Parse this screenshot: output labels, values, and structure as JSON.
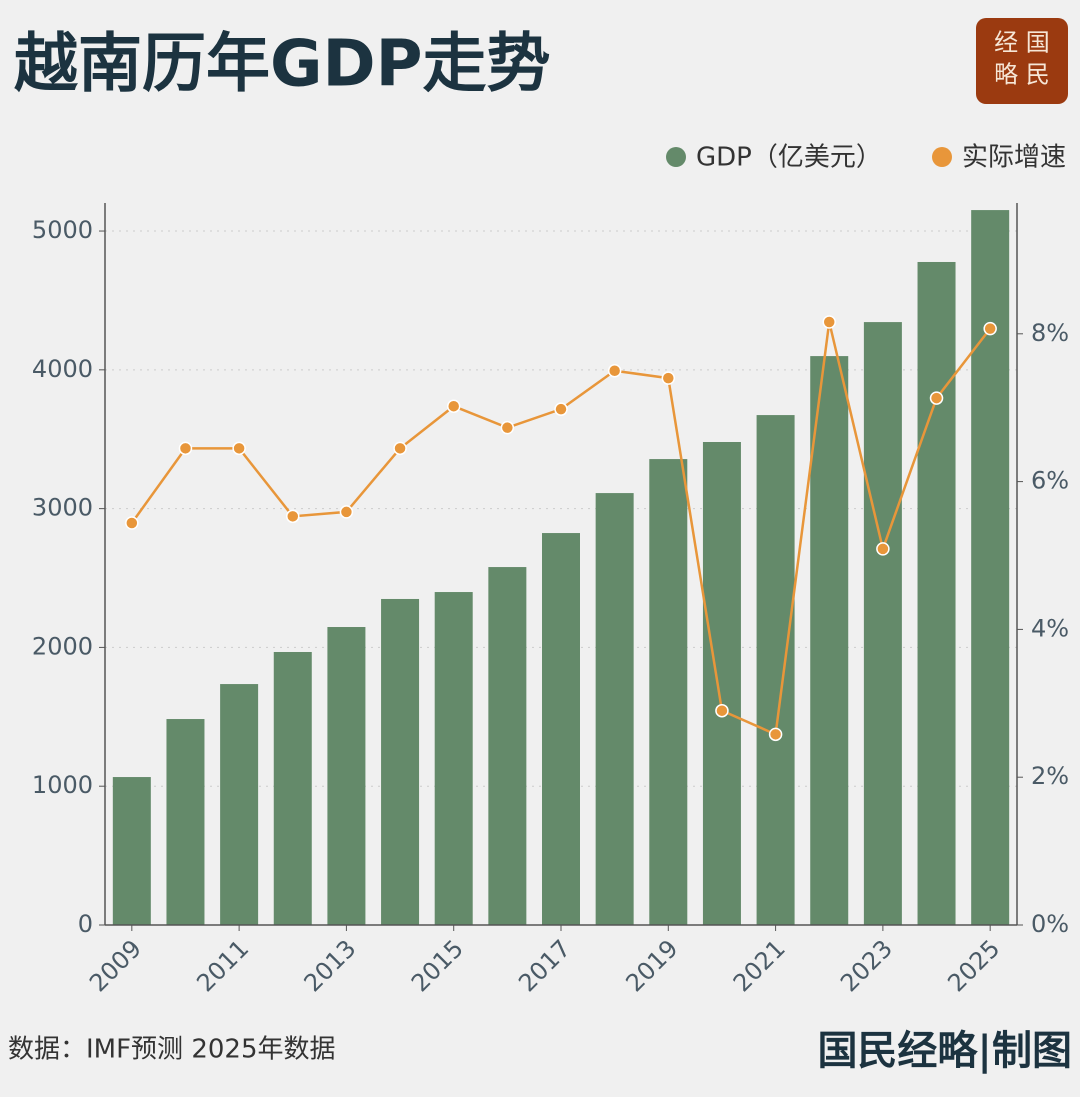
{
  "logo": {
    "lines": [
      "经 国",
      "略 民"
    ]
  },
  "chart_data": {
    "type": "bar-line",
    "title": "越南历年GDP走势",
    "source": "数据：IMF预测  2025年数据",
    "credit": "国民经略|制图",
    "x": [
      2009,
      2010,
      2011,
      2012,
      2013,
      2014,
      2015,
      2016,
      2017,
      2018,
      2019,
      2020,
      2021,
      2022,
      2023,
      2024,
      2025
    ],
    "xlim": [
      2008.5,
      2025.5
    ],
    "xticks": [
      2009,
      2011,
      2013,
      2015,
      2017,
      2019,
      2021,
      2023,
      2025
    ],
    "ylim": [
      0,
      5202
    ],
    "yticks": [
      0,
      1000,
      2000,
      3000,
      4000,
      5000
    ],
    "y2lim": [
      0,
      9.77
    ],
    "y2ticks": [
      {
        "value": 0,
        "label": "0%"
      },
      {
        "value": 2,
        "label": "2%"
      },
      {
        "value": 4,
        "label": "4%"
      },
      {
        "value": 6,
        "label": "6%"
      },
      {
        "value": 8,
        "label": "8%"
      }
    ],
    "grid": true,
    "series": [
      {
        "name": "GDP（亿美元）",
        "type": "bar",
        "color": "#648a6a",
        "values": [
          1066,
          1484,
          1736,
          1967,
          2147,
          2349,
          2399,
          2579,
          2824,
          3112,
          3357,
          3480,
          3674,
          4099,
          4344,
          4777,
          5151
        ]
      },
      {
        "name": "实际增速",
        "type": "line",
        "axis": "y2",
        "color": "#e8963a",
        "values": [
          5.44,
          6.45,
          6.45,
          5.53,
          5.59,
          6.45,
          7.02,
          6.73,
          6.98,
          7.5,
          7.4,
          2.9,
          2.58,
          8.16,
          5.09,
          7.13,
          8.07
        ]
      }
    ]
  }
}
